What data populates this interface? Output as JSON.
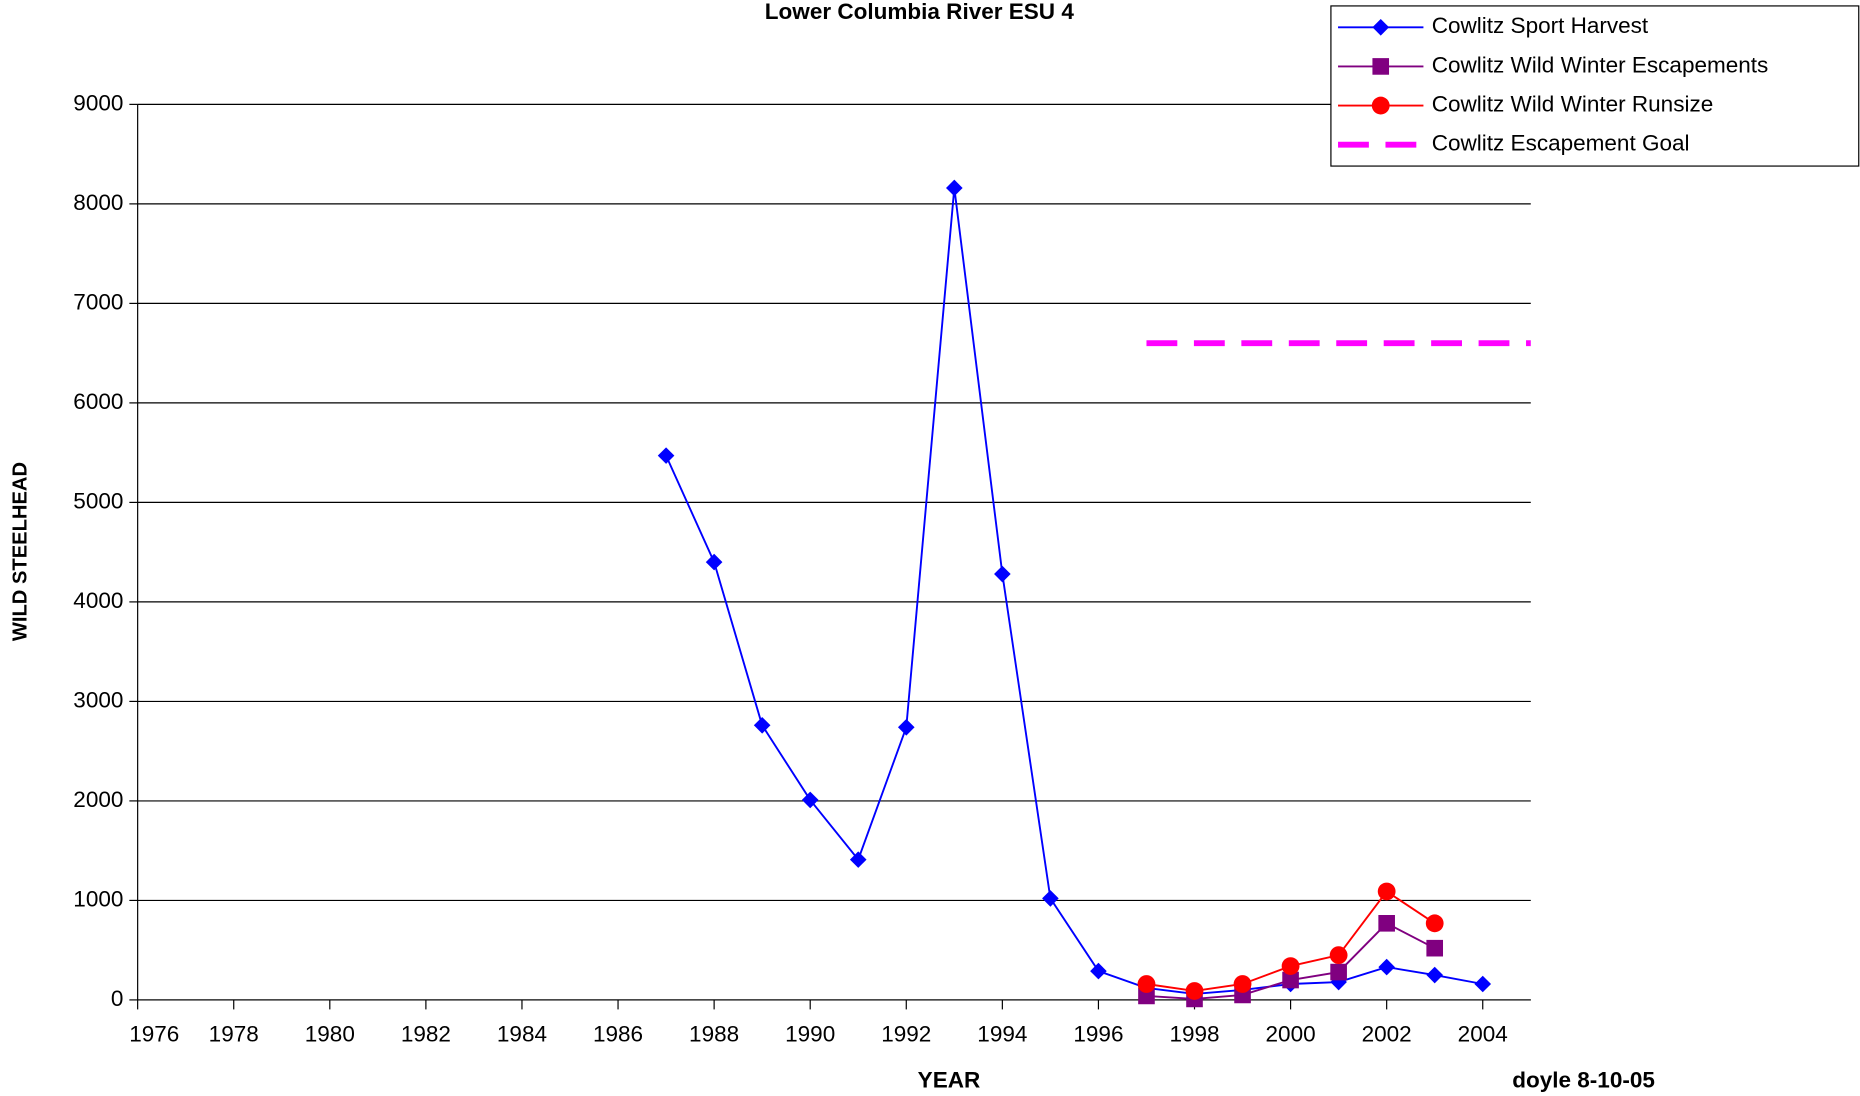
{
  "chart_data": {
    "type": "line",
    "title": "Lower Columbia River ESU 4",
    "x_label": "YEAR",
    "y_label": "WILD STEELHEAD",
    "annotation": "doyle 8-10-05",
    "xlim": [
      1976,
      2005
    ],
    "xticks": [
      1976,
      1978,
      1980,
      1982,
      1984,
      1986,
      1988,
      1990,
      1992,
      1994,
      1996,
      1998,
      2000,
      2002,
      2004
    ],
    "ylim": [
      0,
      9000
    ],
    "yticks": [
      0,
      1000,
      2000,
      3000,
      4000,
      5000,
      6000,
      7000,
      8000,
      9000
    ],
    "grid": true,
    "legend": "top-right",
    "series": [
      {
        "name": "Cowlitz Sport Harvest",
        "color": "#0000ff",
        "marker": "diamond",
        "linestyle": "solid",
        "x": [
          1987,
          1988,
          1989,
          1990,
          1991,
          1992,
          1993,
          1994,
          1995,
          1996,
          1997,
          1998,
          1999,
          2000,
          2001,
          2002,
          2003,
          2004
        ],
        "values": [
          5470,
          4400,
          2760,
          2010,
          1410,
          2740,
          8160,
          4280,
          1020,
          290,
          120,
          60,
          100,
          160,
          180,
          330,
          250,
          160
        ]
      },
      {
        "name": "Cowlitz Wild Winter Escapements",
        "color": "#800080",
        "marker": "square",
        "linestyle": "solid",
        "x": [
          1997,
          1998,
          1999,
          2000,
          2001,
          2002,
          2003
        ],
        "values": [
          40,
          10,
          50,
          200,
          280,
          770,
          520
        ]
      },
      {
        "name": "Cowlitz Wild Winter Runsize",
        "color": "#ff0000",
        "marker": "circle",
        "linestyle": "solid",
        "x": [
          1997,
          1998,
          1999,
          2000,
          2001,
          2002,
          2003
        ],
        "values": [
          160,
          90,
          160,
          340,
          450,
          1090,
          770
        ]
      },
      {
        "name": "Cowlitz Escapement Goal",
        "color": "#ff00ff",
        "marker": "none",
        "linestyle": "dashed",
        "x": [
          1997,
          2005
        ],
        "values": [
          6600,
          6600
        ]
      }
    ]
  }
}
